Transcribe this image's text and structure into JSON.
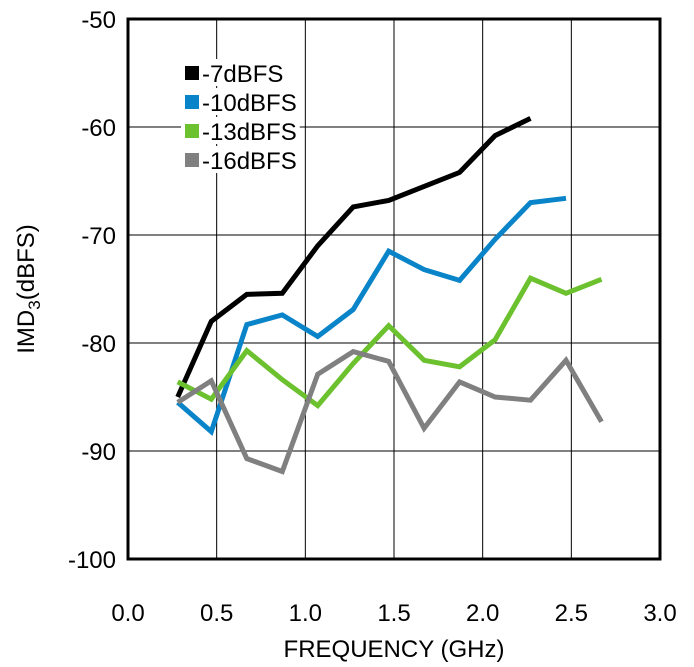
{
  "chart_data": {
    "type": "line",
    "xlabel": "FREQUENCY (GHz)",
    "ylabel_main": "IMD",
    "ylabel_sub": "3",
    "ylabel_tail": "(dBFS)",
    "xlim": [
      0.0,
      3.0
    ],
    "ylim": [
      -100,
      -50
    ],
    "xticks": [
      "0.0",
      "0.5",
      "1.0",
      "1.5",
      "2.0",
      "2.5",
      "3.0"
    ],
    "yticks": [
      "-50",
      "-60",
      "-70",
      "-80",
      "-90",
      "-100"
    ],
    "grid": true,
    "legend_position": "top-left",
    "series": [
      {
        "name": "-7dBFS",
        "color": "#000000",
        "x": [
          0.28,
          0.47,
          0.67,
          0.87,
          1.07,
          1.27,
          1.47,
          1.67,
          1.87,
          2.07,
          2.27
        ],
        "y": [
          -85.0,
          -78.0,
          -75.5,
          -75.4,
          -71.0,
          -67.4,
          -66.8,
          -65.5,
          -64.2,
          -60.8,
          -59.2
        ]
      },
      {
        "name": "-10dBFS",
        "color": "#0a84c8",
        "x": [
          0.28,
          0.47,
          0.67,
          0.87,
          1.07,
          1.27,
          1.47,
          1.67,
          1.87,
          2.07,
          2.27,
          2.47
        ],
        "y": [
          -85.5,
          -88.2,
          -78.3,
          -77.4,
          -79.4,
          -76.9,
          -71.5,
          -73.2,
          -74.2,
          -70.4,
          -67.0,
          -66.6
        ]
      },
      {
        "name": "-13dBFS",
        "color": "#6cc12e",
        "x": [
          0.28,
          0.47,
          0.67,
          0.87,
          1.07,
          1.27,
          1.47,
          1.67,
          1.87,
          2.07,
          2.27,
          2.47,
          2.67
        ],
        "y": [
          -83.6,
          -85.2,
          -80.7,
          -83.4,
          -85.8,
          -81.9,
          -78.4,
          -81.6,
          -82.2,
          -79.7,
          -74.0,
          -75.4,
          -74.1
        ]
      },
      {
        "name": "-16dBFS",
        "color": "#808080",
        "x": [
          0.28,
          0.47,
          0.67,
          0.87,
          1.07,
          1.27,
          1.47,
          1.67,
          1.87,
          2.07,
          2.27,
          2.47,
          2.67
        ],
        "y": [
          -85.5,
          -83.5,
          -90.7,
          -91.9,
          -82.9,
          -80.8,
          -81.7,
          -87.9,
          -83.6,
          -85.0,
          -85.3,
          -81.6,
          -87.3
        ]
      }
    ]
  }
}
